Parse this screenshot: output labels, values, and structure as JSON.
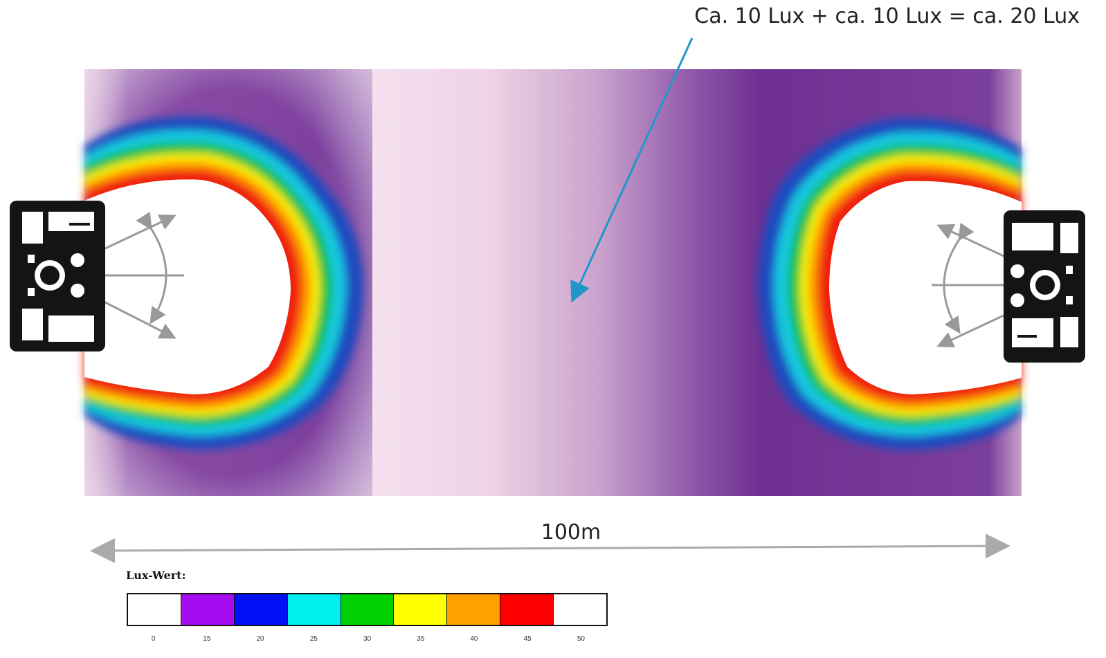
{
  "annotation": {
    "text": "Ca. 10 Lux  + ca. 10 Lux = ca. 20 Lux",
    "arrow_color": "#1f97c9"
  },
  "dimension": {
    "label": "100m",
    "arrow_color": "#aaaaaa"
  },
  "legend": {
    "title": "Lux-Wert:",
    "swatches": [
      {
        "color": "#ffffff"
      },
      {
        "color": "#a50cf0"
      },
      {
        "color": "#0010f8"
      },
      {
        "color": "#00f0f0"
      },
      {
        "color": "#00d000"
      },
      {
        "color": "#ffff00"
      },
      {
        "color": "#ffa000"
      },
      {
        "color": "#ff0000"
      },
      {
        "color": "#ffffff"
      }
    ],
    "ticks": [
      "0",
      "15",
      "20",
      "25",
      "30",
      "35",
      "40",
      "45",
      "50"
    ]
  },
  "colors": {
    "field_pale": "#f3dce9",
    "field_purple": "#7b3f9c",
    "lamp_body": "#141414"
  },
  "icons": {
    "light_left": "floodlight-tower-icon",
    "light_right": "floodlight-tower-icon"
  }
}
